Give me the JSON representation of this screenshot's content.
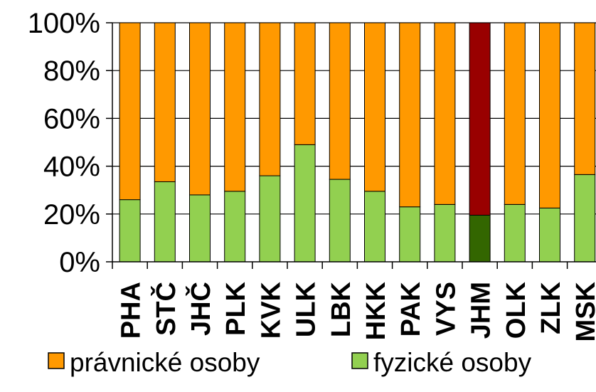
{
  "chart_data": {
    "type": "bar",
    "stacked": true,
    "normalized": true,
    "title": "",
    "xlabel": "",
    "ylabel": "",
    "ylim": [
      0,
      100
    ],
    "yticks": [
      "0%",
      "20%",
      "40%",
      "60%",
      "80%",
      "100%"
    ],
    "categories": [
      "PHA",
      "STČ",
      "JHČ",
      "PLK",
      "KVK",
      "ULK",
      "LBK",
      "HKK",
      "PAK",
      "VYS",
      "JHM",
      "OLK",
      "ZLK",
      "MSK"
    ],
    "series": [
      {
        "name": "fyzické osoby",
        "color": "#92d050",
        "values": [
          26,
          33.5,
          28,
          29.5,
          36,
          49,
          34.5,
          29.5,
          23,
          24,
          19.5,
          24,
          22.5,
          36.5
        ]
      },
      {
        "name": "právnické osoby",
        "color": "#ff9900",
        "values": [
          74,
          66.5,
          72,
          70.5,
          64,
          51,
          65.5,
          70.5,
          77,
          76,
          80.5,
          76,
          77.5,
          63.5
        ]
      }
    ],
    "highlight": {
      "category": "JHM",
      "colors": {
        "fyzické osoby": "#336600",
        "právnické osoby": "#990000"
      }
    },
    "legend": {
      "position": "bottom",
      "order": [
        "právnické osoby",
        "fyzické osoby"
      ]
    },
    "grid": true
  }
}
